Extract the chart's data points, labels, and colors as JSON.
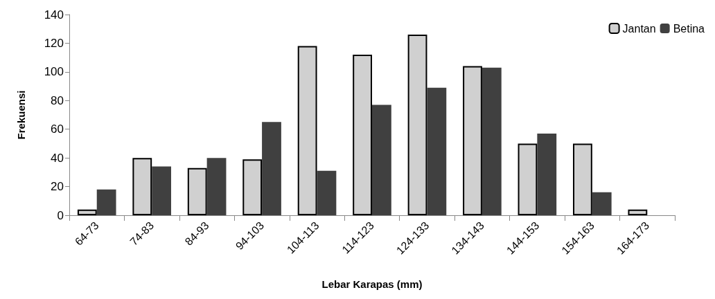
{
  "chart_data": {
    "type": "bar",
    "xlabel": "Lebar Karapas (mm)",
    "ylabel": "Frekuensi",
    "categories": [
      "64-73",
      "74-83",
      "84-93",
      "94-103",
      "104-113",
      "114-123",
      "124-133",
      "134-143",
      "144-153",
      "154-163",
      "164-173"
    ],
    "series": [
      {
        "name": "Jantan",
        "color": "#d0d0d0",
        "values": [
          4,
          40,
          33,
          39,
          118,
          112,
          126,
          104,
          50,
          50,
          4
        ]
      },
      {
        "name": "Betina",
        "color": "#404040",
        "values": [
          18,
          34,
          40,
          65,
          31,
          77,
          89,
          103,
          57,
          16,
          0
        ]
      }
    ],
    "ylim": [
      0,
      140
    ],
    "yticks": [
      0,
      20,
      40,
      60,
      80,
      100,
      120,
      140
    ],
    "grid": false,
    "legend": "top right"
  }
}
